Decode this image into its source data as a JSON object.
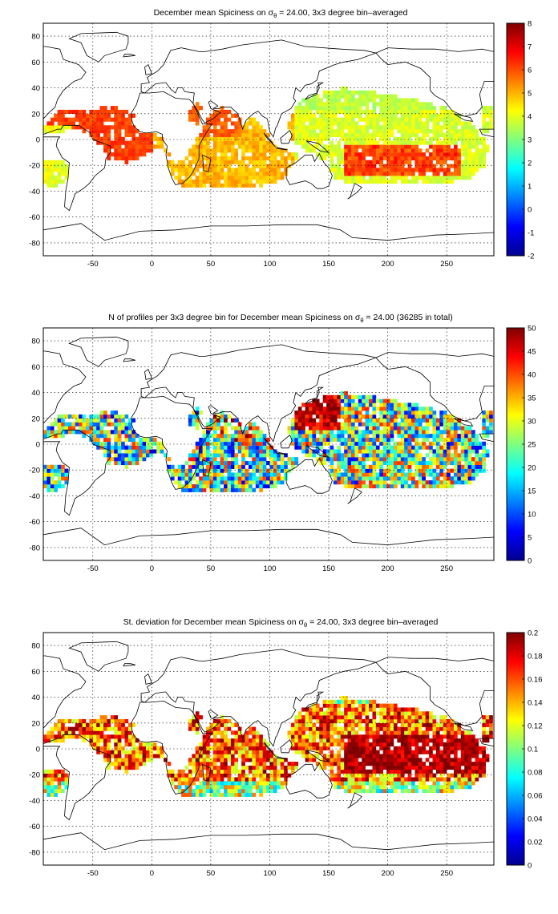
{
  "panels": [
    {
      "title": {
        "pre": "December mean Spiciness on ",
        "sigma": "σ",
        "sub": "θ",
        "post": " = 24.00, 3x3 degree bin–averaged"
      },
      "colorbar": {
        "ticks": [
          "8",
          "7",
          "6",
          "5",
          "4",
          "3",
          "2",
          "1",
          "0",
          "-1",
          "-2"
        ],
        "min": -2,
        "max": 8
      },
      "field": "spice"
    },
    {
      "title": {
        "pre": "N of profiles per 3x3 degree bin for December mean Spiciness on ",
        "sigma": "σ",
        "sub": "θ",
        "post": " = 24.00 (36285 in total)"
      },
      "colorbar": {
        "ticks": [
          "50",
          "45",
          "40",
          "35",
          "30",
          "25",
          "20",
          "15",
          "10",
          "5",
          "0"
        ],
        "min": 0,
        "max": 50
      },
      "field": "count"
    },
    {
      "title": {
        "pre": "St. deviation for December mean Spiciness on ",
        "sigma": "σ",
        "sub": "θ",
        "post": " = 24.00, 3x3 degree bin–averaged"
      },
      "colorbar": {
        "ticks": [
          "0.2",
          "0.18",
          "0.16",
          "0.14",
          "0.12",
          "0.1",
          "0.08",
          "0.06",
          "0.04",
          "0.02",
          "0"
        ],
        "min": 0,
        "max": 0.2
      },
      "field": "std"
    }
  ],
  "axes": {
    "x_ticks": [
      "-50",
      "0",
      "50",
      "100",
      "150",
      "200",
      "250"
    ],
    "y_ticks": [
      "80",
      "60",
      "40",
      "20",
      "0",
      "-20",
      "-40",
      "-60",
      "-80"
    ],
    "x_range": [
      -92,
      290
    ],
    "y_range": [
      -90,
      90
    ],
    "grid": true,
    "grid_style": "dotted"
  },
  "colormap": "jet"
}
